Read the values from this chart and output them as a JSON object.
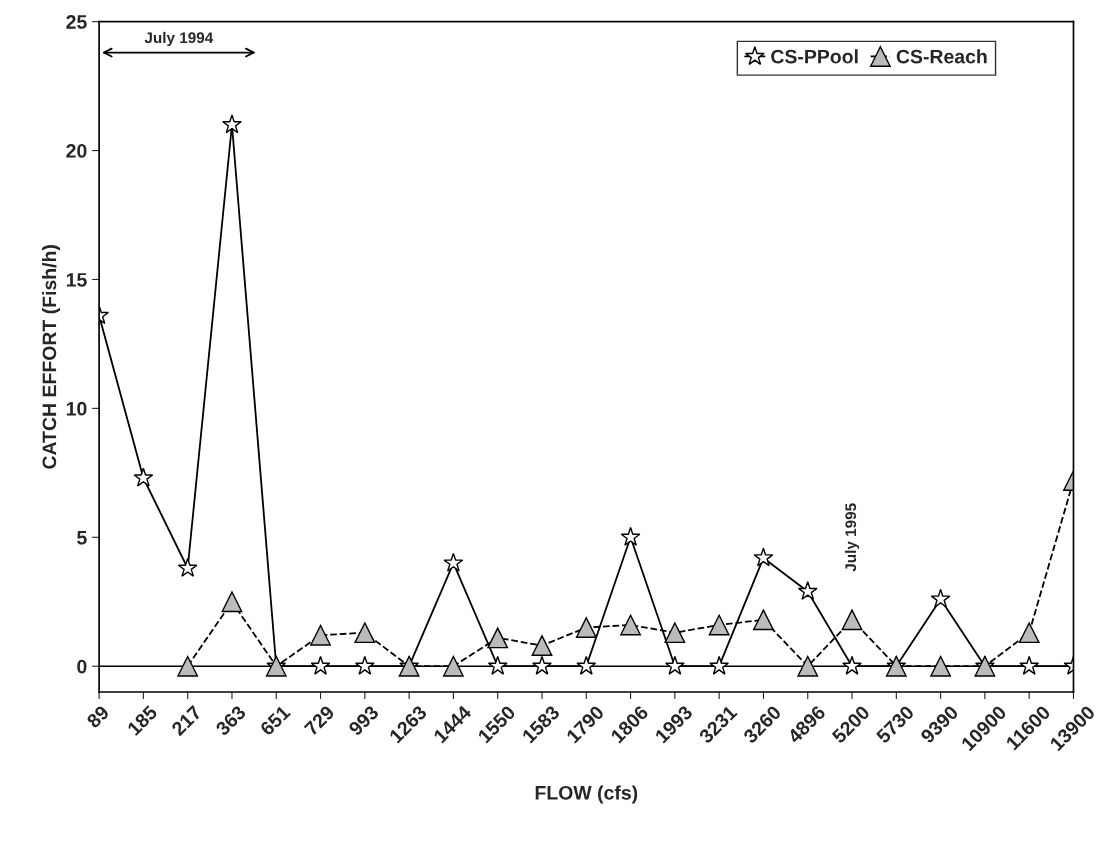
{
  "chart_data": {
    "type": "line",
    "xlabel": "FLOW (cfs)",
    "ylabel": "CATCH EFFORT (Fish/h)",
    "categories": [
      "89",
      "185",
      "217",
      "363",
      "651",
      "729",
      "993",
      "1263",
      "1444",
      "1550",
      "1583",
      "1790",
      "1806",
      "1993",
      "3231",
      "3260",
      "4896",
      "5200",
      "5730",
      "9390",
      "10900",
      "11600",
      "13900"
    ],
    "series": [
      {
        "name": "CS-PPool",
        "color": "#000000",
        "marker": "star",
        "line_style": "solid",
        "values": [
          13.6,
          7.3,
          3.8,
          21.0,
          0,
          0,
          0,
          0,
          4.0,
          0,
          0,
          0,
          5.0,
          0,
          0,
          4.2,
          2.9,
          0,
          0,
          2.6,
          0,
          0,
          0
        ]
      },
      {
        "name": "CS-Reach",
        "color": "#000000",
        "marker": "triangle",
        "line_style": "dashed",
        "values": [
          null,
          null,
          0,
          2.5,
          0,
          1.2,
          1.3,
          0,
          0,
          1.1,
          0.8,
          1.5,
          1.6,
          1.3,
          1.6,
          1.8,
          0,
          1.8,
          0,
          0,
          0,
          1.3,
          7.2
        ]
      }
    ],
    "ylim": [
      -1,
      25
    ],
    "yticks": [
      0,
      5,
      10,
      15,
      20,
      25
    ],
    "ref_lines": [
      {
        "axis": "y",
        "value": 0,
        "color": "#000000"
      }
    ],
    "annotations": [
      "July 1994",
      "July 1995"
    ],
    "grid": false,
    "legend": "top right"
  }
}
